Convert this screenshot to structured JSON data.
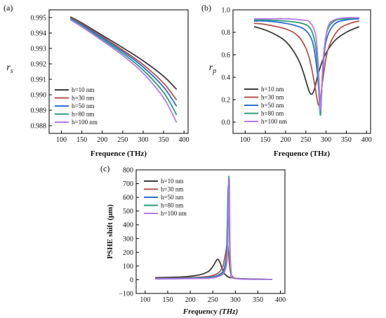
{
  "chart_data": [
    {
      "panel_label": "(a)",
      "type": "line",
      "xlabel": "Frequence (THz)",
      "ylabel": "r_s",
      "ylabel_text": "r",
      "ylabel_sub": "s",
      "xlim": [
        70,
        410
      ],
      "ylim": [
        0.9875,
        0.9955
      ],
      "xticks": [
        100,
        150,
        200,
        250,
        300,
        350,
        400
      ],
      "yticks": [
        0.988,
        0.989,
        0.99,
        0.991,
        0.992,
        0.993,
        0.994,
        0.995
      ],
      "ytick_labels": [
        "0.988",
        "0.989",
        "0.990",
        "0.991",
        "0.992",
        "0.993",
        "0.994",
        "0.995"
      ],
      "legend_position": "lower-left",
      "series": [
        {
          "name": "h=10 nm",
          "color": "#3d3d3d",
          "x": [
            122,
            150,
            200,
            250,
            300,
            350,
            382
          ],
          "y": [
            0.99505,
            0.99465,
            0.99385,
            0.99305,
            0.9922,
            0.9912,
            0.99035
          ]
        },
        {
          "name": "h=30 nm",
          "color": "#b5534a",
          "x": [
            122,
            150,
            200,
            250,
            300,
            350,
            382
          ],
          "y": [
            0.995,
            0.99458,
            0.99375,
            0.9929,
            0.99195,
            0.99075,
            0.98965
          ]
        },
        {
          "name": "h=50 nm",
          "color": "#2f6fd6",
          "x": [
            122,
            150,
            200,
            250,
            300,
            350,
            382
          ],
          "y": [
            0.99495,
            0.99452,
            0.99368,
            0.9928,
            0.9918,
            0.9905,
            0.98925
          ]
        },
        {
          "name": "h=80 nm",
          "color": "#2a9d78",
          "x": [
            122,
            150,
            200,
            250,
            300,
            350,
            382
          ],
          "y": [
            0.9949,
            0.99445,
            0.99358,
            0.99268,
            0.9916,
            0.99015,
            0.9887
          ]
        },
        {
          "name": "h=100 nm",
          "color": "#b57be8",
          "x": [
            122,
            150,
            200,
            250,
            300,
            350,
            382
          ],
          "y": [
            0.99485,
            0.9944,
            0.9935,
            0.99255,
            0.9914,
            0.9898,
            0.9882
          ]
        }
      ]
    },
    {
      "panel_label": "(b)",
      "type": "line",
      "xlabel": "Frequence (THz)",
      "ylabel": "r_p",
      "ylabel_text": "r",
      "ylabel_sub": "p",
      "xlim": [
        70,
        410
      ],
      "ylim": [
        -0.1,
        1.0
      ],
      "xticks": [
        100,
        150,
        200,
        250,
        300,
        350,
        400
      ],
      "yticks": [
        0.0,
        0.2,
        0.4,
        0.6,
        0.8,
        1.0
      ],
      "ytick_labels": [
        "0.0",
        "0.2",
        "0.4",
        "0.6",
        "0.8",
        "1.0"
      ],
      "legend_position": "lower-left",
      "series": [
        {
          "name": "h=10 nm",
          "color": "#3d3d3d",
          "x": [
            122,
            150,
            180,
            200,
            220,
            235,
            245,
            255,
            262,
            270,
            280,
            295,
            320,
            350,
            382
          ],
          "y": [
            0.85,
            0.82,
            0.77,
            0.72,
            0.63,
            0.53,
            0.43,
            0.31,
            0.25,
            0.28,
            0.42,
            0.58,
            0.72,
            0.8,
            0.85
          ]
        },
        {
          "name": "h=30 nm",
          "color": "#b5534a",
          "x": [
            122,
            150,
            200,
            230,
            250,
            262,
            272,
            278,
            282,
            286,
            292,
            305,
            330,
            360,
            382
          ],
          "y": [
            0.88,
            0.87,
            0.83,
            0.77,
            0.66,
            0.52,
            0.33,
            0.2,
            0.15,
            0.2,
            0.38,
            0.65,
            0.82,
            0.88,
            0.9
          ]
        },
        {
          "name": "h=50 nm",
          "color": "#2f6fd6",
          "x": [
            122,
            150,
            200,
            240,
            260,
            270,
            278,
            282,
            285,
            288,
            292,
            300,
            320,
            350,
            382
          ],
          "y": [
            0.9,
            0.9,
            0.88,
            0.84,
            0.77,
            0.66,
            0.45,
            0.28,
            0.1,
            0.2,
            0.45,
            0.72,
            0.87,
            0.91,
            0.92
          ]
        },
        {
          "name": "h=80 nm",
          "color": "#2a9d78",
          "x": [
            122,
            150,
            200,
            240,
            260,
            272,
            279,
            283,
            286,
            289,
            293,
            302,
            320,
            350,
            382
          ],
          "y": [
            0.91,
            0.91,
            0.9,
            0.88,
            0.84,
            0.72,
            0.5,
            0.25,
            0.06,
            0.25,
            0.55,
            0.8,
            0.9,
            0.92,
            0.93
          ]
        },
        {
          "name": "h=100 nm",
          "color": "#b57be8",
          "x": [
            122,
            150,
            200,
            240,
            260,
            274,
            280,
            284,
            286,
            289,
            294,
            304,
            320,
            350,
            382
          ],
          "y": [
            0.92,
            0.92,
            0.92,
            0.91,
            0.89,
            0.78,
            0.55,
            0.25,
            0.1,
            0.28,
            0.6,
            0.84,
            0.91,
            0.93,
            0.93
          ]
        }
      ]
    },
    {
      "panel_label": "(c)",
      "type": "line",
      "xlabel": "Frequency (THz)",
      "ylabel": "PSHE shift (μm)",
      "xlim": [
        80,
        410
      ],
      "ylim": [
        -100,
        800
      ],
      "xticks": [
        100,
        150,
        200,
        250,
        300,
        350,
        400
      ],
      "yticks": [
        -100,
        0,
        100,
        200,
        300,
        400,
        500,
        600,
        700,
        800
      ],
      "ytick_labels": [
        "−100",
        "0",
        "100",
        "200",
        "300",
        "400",
        "500",
        "600",
        "700",
        "800"
      ],
      "legend_position": "top-left",
      "series": [
        {
          "name": "h=10 nm",
          "color": "#3d3d3d",
          "x": [
            122,
            180,
            220,
            240,
            250,
            256,
            261,
            266,
            272,
            280,
            300,
            382
          ],
          "y": [
            15,
            20,
            35,
            60,
            95,
            130,
            150,
            125,
            70,
            30,
            10,
            2
          ]
        },
        {
          "name": "h=30 nm",
          "color": "#b5534a",
          "x": [
            122,
            200,
            250,
            270,
            277,
            281,
            283,
            285,
            288,
            293,
            310,
            382
          ],
          "y": [
            10,
            15,
            30,
            80,
            170,
            245,
            255,
            190,
            80,
            25,
            8,
            2
          ]
        },
        {
          "name": "h=50 nm",
          "color": "#2f6fd6",
          "x": [
            122,
            200,
            260,
            278,
            282,
            284,
            286,
            288,
            291,
            300,
            382
          ],
          "y": [
            8,
            12,
            30,
            120,
            380,
            660,
            620,
            200,
            50,
            10,
            2
          ]
        },
        {
          "name": "h=80 nm",
          "color": "#2a9d78",
          "x": [
            122,
            200,
            260,
            279,
            283,
            285,
            286,
            287,
            290,
            300,
            382
          ],
          "y": [
            6,
            10,
            25,
            110,
            420,
            700,
            715,
            300,
            60,
            10,
            2
          ]
        },
        {
          "name": "h=100 nm",
          "color": "#b57be8",
          "x": [
            122,
            200,
            260,
            280,
            284,
            286,
            287,
            288,
            291,
            300,
            382
          ],
          "y": [
            5,
            8,
            20,
            100,
            400,
            690,
            700,
            280,
            55,
            8,
            2
          ]
        }
      ]
    }
  ]
}
